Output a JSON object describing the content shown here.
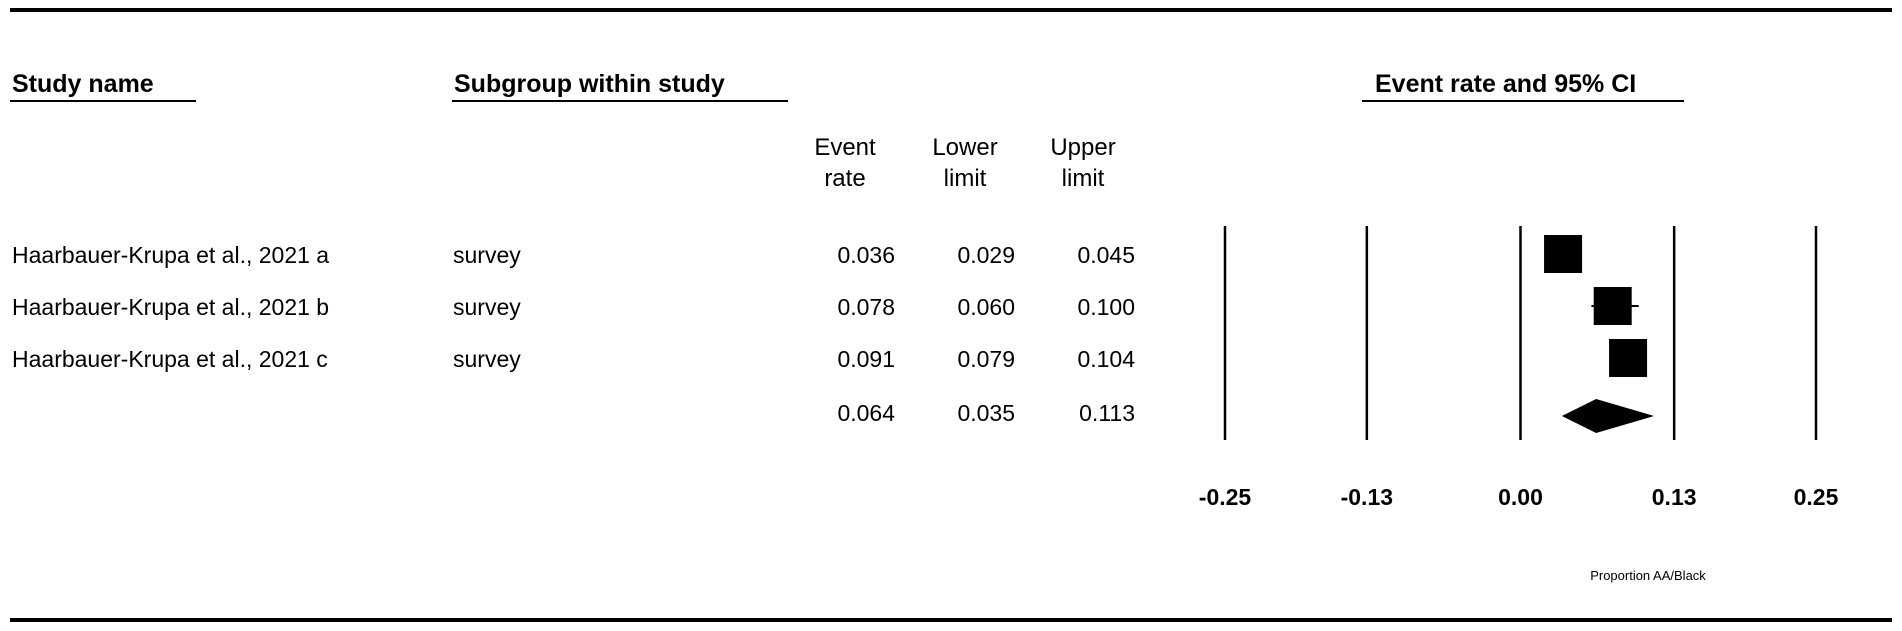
{
  "headers": {
    "study_name": "Study name",
    "subgroup": "Subgroup within study",
    "event_rate_ci": "Event rate and 95% CI"
  },
  "columns": {
    "event_rate": [
      "Event",
      "rate"
    ],
    "lower_limit": [
      "Lower",
      "limit"
    ],
    "upper_limit": [
      "Upper",
      "limit"
    ]
  },
  "rows": [
    {
      "study": "Haarbauer-Krupa et al., 2021 a",
      "subgroup": "survey",
      "event_rate": "0.036",
      "lower": "0.029",
      "upper": "0.045"
    },
    {
      "study": "Haarbauer-Krupa et al., 2021 b",
      "subgroup": "survey",
      "event_rate": "0.078",
      "lower": "0.060",
      "upper": "0.100"
    },
    {
      "study": "Haarbauer-Krupa et al., 2021 c",
      "subgroup": "survey",
      "event_rate": "0.091",
      "lower": "0.079",
      "upper": "0.104"
    }
  ],
  "summary": {
    "event_rate": "0.064",
    "lower": "0.035",
    "upper": "0.113"
  },
  "chart_data": {
    "type": "forest",
    "title": "Event rate and 95% CI",
    "xlabel": "Proportion AA/Black",
    "xlim": [
      -0.25,
      0.25
    ],
    "ticks": [
      -0.25,
      -0.13,
      0.0,
      0.13,
      0.25
    ],
    "tick_labels": [
      "-0.25",
      "-0.13",
      "0.00",
      "0.13",
      "0.25"
    ],
    "studies": [
      {
        "label": "Haarbauer-Krupa et al., 2021 a",
        "estimate": 0.036,
        "lower": 0.029,
        "upper": 0.045
      },
      {
        "label": "Haarbauer-Krupa et al., 2021 b",
        "estimate": 0.078,
        "lower": 0.06,
        "upper": 0.1
      },
      {
        "label": "Haarbauer-Krupa et al., 2021 c",
        "estimate": 0.091,
        "lower": 0.079,
        "upper": 0.104
      }
    ],
    "summary": {
      "estimate": 0.064,
      "lower": 0.035,
      "upper": 0.113
    },
    "colors": {
      "marks": "#000000"
    }
  }
}
